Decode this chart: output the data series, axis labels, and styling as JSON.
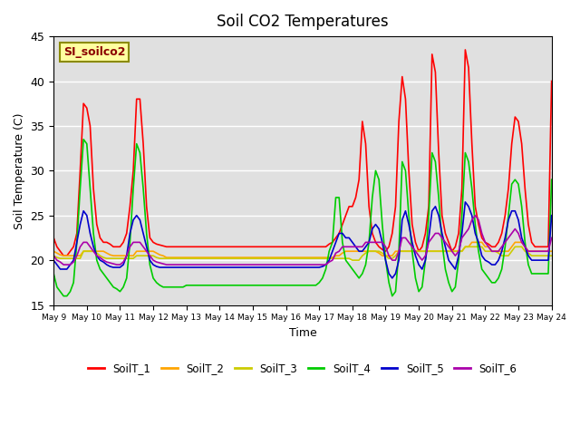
{
  "title": "Soil CO2 Temperatures",
  "xlabel": "Time",
  "ylabel": "Soil Temperature (C)",
  "ylim": [
    15,
    45
  ],
  "xlim": [
    9,
    24
  ],
  "annotation_text": "SI_soilco2",
  "annotation_color": "#8B0000",
  "annotation_bg": "#FFFFA0",
  "annotation_border": "#8B8B00",
  "bg_color": "#E0E0E0",
  "series_colors": {
    "SoilT_1": "#FF0000",
    "SoilT_2": "#FFA500",
    "SoilT_3": "#CCCC00",
    "SoilT_4": "#00CC00",
    "SoilT_5": "#0000CC",
    "SoilT_6": "#AA00AA"
  },
  "yticks": [
    15,
    20,
    25,
    30,
    35,
    40,
    45
  ],
  "xtick_positions": [
    9,
    10,
    11,
    12,
    13,
    14,
    15,
    16,
    17,
    18,
    19,
    20,
    21,
    22,
    23,
    24
  ],
  "xtick_labels": [
    "May 9",
    "May 10",
    "May 11",
    "May 12",
    "May 13",
    "May 14",
    "May 15",
    "May 16",
    "May 17",
    "May 18",
    "May 19",
    "May 20",
    "May 21",
    "May 22",
    "May 23",
    "May 24"
  ],
  "x": [
    9.0,
    9.1,
    9.2,
    9.3,
    9.4,
    9.5,
    9.6,
    9.7,
    9.8,
    9.9,
    10.0,
    10.1,
    10.2,
    10.3,
    10.4,
    10.5,
    10.6,
    10.7,
    10.8,
    10.9,
    11.0,
    11.1,
    11.2,
    11.3,
    11.4,
    11.5,
    11.6,
    11.7,
    11.8,
    11.9,
    12.0,
    12.1,
    12.2,
    12.3,
    12.4,
    12.5,
    12.6,
    12.7,
    12.8,
    12.9,
    13.0,
    13.1,
    13.2,
    13.3,
    13.4,
    13.5,
    13.6,
    13.7,
    13.8,
    13.9,
    14.0,
    14.1,
    14.2,
    14.3,
    14.4,
    14.5,
    14.6,
    14.7,
    14.8,
    14.9,
    15.0,
    15.1,
    15.2,
    15.3,
    15.4,
    15.5,
    15.6,
    15.7,
    15.8,
    15.9,
    16.0,
    16.1,
    16.2,
    16.3,
    16.4,
    16.5,
    16.6,
    16.7,
    16.8,
    16.9,
    17.0,
    17.1,
    17.2,
    17.3,
    17.4,
    17.5,
    17.6,
    17.7,
    17.8,
    17.9,
    18.0,
    18.1,
    18.2,
    18.3,
    18.4,
    18.5,
    18.6,
    18.7,
    18.8,
    18.9,
    19.0,
    19.1,
    19.2,
    19.3,
    19.4,
    19.5,
    19.6,
    19.7,
    19.8,
    19.9,
    20.0,
    20.1,
    20.2,
    20.3,
    20.4,
    20.5,
    20.6,
    20.7,
    20.8,
    20.9,
    21.0,
    21.1,
    21.2,
    21.3,
    21.4,
    21.5,
    21.6,
    21.7,
    21.8,
    21.9,
    22.0,
    22.1,
    22.2,
    22.3,
    22.4,
    22.5,
    22.6,
    22.7,
    22.8,
    22.9,
    23.0,
    23.1,
    23.2,
    23.3,
    23.4,
    23.5,
    23.6,
    23.7,
    23.8,
    23.9,
    24.0
  ],
  "SoilT_1": [
    22.5,
    21.5,
    21.0,
    20.5,
    20.5,
    21.0,
    21.5,
    23.0,
    30.0,
    37.5,
    37.0,
    35.0,
    28.0,
    24.0,
    22.5,
    22.0,
    22.0,
    21.8,
    21.5,
    21.5,
    21.5,
    22.0,
    23.0,
    26.0,
    30.0,
    38.0,
    38.0,
    33.0,
    26.0,
    22.5,
    22.0,
    21.8,
    21.7,
    21.6,
    21.5,
    21.5,
    21.5,
    21.5,
    21.5,
    21.5,
    21.5,
    21.5,
    21.5,
    21.5,
    21.5,
    21.5,
    21.5,
    21.5,
    21.5,
    21.5,
    21.5,
    21.5,
    21.5,
    21.5,
    21.5,
    21.5,
    21.5,
    21.5,
    21.5,
    21.5,
    21.5,
    21.5,
    21.5,
    21.5,
    21.5,
    21.5,
    21.5,
    21.5,
    21.5,
    21.5,
    21.5,
    21.5,
    21.5,
    21.5,
    21.5,
    21.5,
    21.5,
    21.5,
    21.5,
    21.5,
    21.5,
    21.5,
    21.5,
    21.8,
    22.0,
    22.5,
    23.0,
    24.0,
    25.0,
    26.0,
    26.0,
    27.0,
    29.0,
    35.5,
    33.0,
    26.0,
    23.0,
    22.0,
    21.5,
    21.2,
    21.0,
    21.5,
    23.0,
    26.0,
    35.5,
    40.5,
    38.0,
    30.0,
    24.0,
    22.0,
    21.0,
    21.5,
    23.0,
    26.0,
    43.0,
    41.0,
    32.0,
    25.0,
    23.0,
    22.0,
    21.0,
    21.5,
    23.0,
    28.0,
    43.5,
    41.5,
    33.0,
    26.0,
    24.0,
    22.5,
    22.0,
    21.8,
    21.5,
    21.5,
    22.0,
    23.0,
    25.0,
    28.0,
    33.0,
    36.0,
    35.5,
    33.0,
    28.0,
    24.0,
    22.0,
    21.5,
    21.5,
    21.5,
    21.5,
    21.5,
    40.0
  ],
  "SoilT_2": [
    21.0,
    20.8,
    20.6,
    20.5,
    20.5,
    20.5,
    20.5,
    20.5,
    20.5,
    21.0,
    21.0,
    21.0,
    21.0,
    21.0,
    21.0,
    21.0,
    20.8,
    20.6,
    20.5,
    20.5,
    20.5,
    20.5,
    20.5,
    20.5,
    20.5,
    21.0,
    21.0,
    21.0,
    21.0,
    21.0,
    21.0,
    20.8,
    20.6,
    20.5,
    20.3,
    20.3,
    20.3,
    20.3,
    20.3,
    20.3,
    20.3,
    20.3,
    20.3,
    20.3,
    20.3,
    20.3,
    20.3,
    20.3,
    20.3,
    20.3,
    20.3,
    20.3,
    20.3,
    20.3,
    20.3,
    20.3,
    20.3,
    20.3,
    20.3,
    20.3,
    20.3,
    20.3,
    20.3,
    20.3,
    20.3,
    20.3,
    20.3,
    20.3,
    20.3,
    20.3,
    20.3,
    20.3,
    20.3,
    20.3,
    20.3,
    20.3,
    20.3,
    20.3,
    20.3,
    20.3,
    20.3,
    20.3,
    20.3,
    20.3,
    20.3,
    20.5,
    20.5,
    20.8,
    21.0,
    21.0,
    21.0,
    21.0,
    21.0,
    21.0,
    21.0,
    21.0,
    21.0,
    21.0,
    20.8,
    20.5,
    20.5,
    20.5,
    20.5,
    21.0,
    21.0,
    21.0,
    21.0,
    21.0,
    21.0,
    21.0,
    21.0,
    21.0,
    21.0,
    21.0,
    21.0,
    21.0,
    21.0,
    21.0,
    21.0,
    21.0,
    21.0,
    21.0,
    21.0,
    21.0,
    21.5,
    21.5,
    22.0,
    22.0,
    22.0,
    22.0,
    21.5,
    21.5,
    21.0,
    21.0,
    21.0,
    21.0,
    21.0,
    21.0,
    21.5,
    22.0,
    22.0,
    22.0,
    21.5,
    21.0,
    21.0,
    21.0,
    21.0,
    21.0,
    21.0,
    21.0,
    21.0
  ],
  "SoilT_3": [
    20.5,
    20.3,
    20.2,
    20.2,
    20.2,
    20.2,
    20.2,
    20.2,
    20.2,
    21.0,
    21.0,
    21.0,
    21.0,
    20.8,
    20.5,
    20.3,
    20.2,
    20.2,
    20.2,
    20.2,
    20.2,
    20.2,
    20.2,
    20.2,
    20.2,
    20.5,
    20.5,
    20.5,
    20.5,
    20.5,
    20.5,
    20.3,
    20.2,
    20.2,
    20.2,
    20.2,
    20.2,
    20.2,
    20.2,
    20.2,
    20.2,
    20.2,
    20.2,
    20.2,
    20.2,
    20.2,
    20.2,
    20.2,
    20.2,
    20.2,
    20.2,
    20.2,
    20.2,
    20.2,
    20.2,
    20.2,
    20.2,
    20.2,
    20.2,
    20.2,
    20.2,
    20.2,
    20.2,
    20.2,
    20.2,
    20.2,
    20.2,
    20.2,
    20.2,
    20.2,
    20.2,
    20.2,
    20.2,
    20.2,
    20.2,
    20.2,
    20.2,
    20.2,
    20.2,
    20.2,
    20.2,
    20.2,
    20.2,
    20.2,
    20.2,
    20.2,
    20.2,
    20.2,
    20.2,
    20.2,
    20.0,
    20.0,
    20.0,
    20.5,
    20.8,
    21.0,
    21.0,
    21.0,
    21.0,
    20.8,
    20.5,
    20.2,
    20.2,
    20.5,
    21.0,
    21.0,
    21.0,
    21.0,
    21.0,
    21.0,
    21.0,
    21.0,
    21.0,
    21.0,
    21.0,
    21.0,
    21.0,
    21.0,
    21.0,
    21.0,
    21.0,
    21.0,
    21.0,
    21.0,
    21.5,
    21.5,
    21.5,
    21.5,
    21.5,
    21.5,
    21.0,
    21.0,
    21.0,
    21.0,
    20.8,
    20.5,
    20.5,
    20.5,
    21.0,
    21.5,
    21.5,
    21.5,
    21.0,
    20.8,
    20.5,
    20.5,
    20.5,
    20.5,
    20.5,
    20.5,
    20.5
  ],
  "SoilT_4": [
    18.5,
    17.0,
    16.5,
    16.0,
    16.0,
    16.5,
    17.5,
    22.0,
    28.0,
    33.5,
    33.0,
    28.0,
    23.0,
    20.0,
    19.0,
    18.5,
    18.0,
    17.5,
    17.0,
    16.8,
    16.5,
    17.0,
    18.0,
    22.0,
    28.0,
    33.0,
    32.0,
    28.0,
    23.0,
    19.5,
    18.0,
    17.5,
    17.2,
    17.0,
    17.0,
    17.0,
    17.0,
    17.0,
    17.0,
    17.0,
    17.2,
    17.2,
    17.2,
    17.2,
    17.2,
    17.2,
    17.2,
    17.2,
    17.2,
    17.2,
    17.2,
    17.2,
    17.2,
    17.2,
    17.2,
    17.2,
    17.2,
    17.2,
    17.2,
    17.2,
    17.2,
    17.2,
    17.2,
    17.2,
    17.2,
    17.2,
    17.2,
    17.2,
    17.2,
    17.2,
    17.2,
    17.2,
    17.2,
    17.2,
    17.2,
    17.2,
    17.2,
    17.2,
    17.2,
    17.2,
    17.5,
    18.0,
    19.0,
    21.0,
    22.0,
    27.0,
    27.0,
    22.0,
    20.0,
    19.5,
    19.0,
    18.5,
    18.0,
    18.5,
    19.5,
    22.0,
    27.0,
    30.0,
    29.0,
    24.0,
    20.0,
    17.5,
    16.0,
    16.5,
    21.0,
    31.0,
    30.0,
    25.0,
    21.0,
    18.0,
    16.5,
    17.0,
    20.0,
    25.0,
    32.0,
    31.0,
    27.0,
    22.0,
    19.0,
    17.5,
    16.5,
    17.0,
    20.0,
    25.0,
    32.0,
    31.0,
    28.0,
    24.0,
    21.0,
    19.0,
    18.5,
    18.0,
    17.5,
    17.5,
    18.0,
    19.0,
    21.5,
    25.0,
    28.5,
    29.0,
    28.5,
    26.0,
    22.0,
    19.5,
    18.5,
    18.5,
    18.5,
    18.5,
    18.5,
    18.5,
    29.0
  ],
  "SoilT_5": [
    20.0,
    19.5,
    19.0,
    19.0,
    19.0,
    19.5,
    20.0,
    22.0,
    24.0,
    25.5,
    25.0,
    23.0,
    21.5,
    20.5,
    20.0,
    19.8,
    19.5,
    19.3,
    19.2,
    19.2,
    19.2,
    19.5,
    20.5,
    23.0,
    24.5,
    25.0,
    24.5,
    23.0,
    21.5,
    20.0,
    19.5,
    19.3,
    19.2,
    19.2,
    19.2,
    19.2,
    19.2,
    19.2,
    19.2,
    19.2,
    19.2,
    19.2,
    19.2,
    19.2,
    19.2,
    19.2,
    19.2,
    19.2,
    19.2,
    19.2,
    19.2,
    19.2,
    19.2,
    19.2,
    19.2,
    19.2,
    19.2,
    19.2,
    19.2,
    19.2,
    19.2,
    19.2,
    19.2,
    19.2,
    19.2,
    19.2,
    19.2,
    19.2,
    19.2,
    19.2,
    19.2,
    19.2,
    19.2,
    19.2,
    19.2,
    19.2,
    19.2,
    19.2,
    19.2,
    19.2,
    19.2,
    19.3,
    19.5,
    20.0,
    21.0,
    22.0,
    23.0,
    23.0,
    22.5,
    22.5,
    22.0,
    21.5,
    21.0,
    21.0,
    21.5,
    22.0,
    23.5,
    24.0,
    23.5,
    22.0,
    20.0,
    18.5,
    18.0,
    18.5,
    20.0,
    24.5,
    25.5,
    24.0,
    22.0,
    20.5,
    19.5,
    19.0,
    20.0,
    22.5,
    25.5,
    26.0,
    25.0,
    23.0,
    21.5,
    20.0,
    19.5,
    19.0,
    20.5,
    23.0,
    26.5,
    26.0,
    25.0,
    23.0,
    22.0,
    20.5,
    20.0,
    19.8,
    19.5,
    19.5,
    20.0,
    21.0,
    22.5,
    24.5,
    25.5,
    25.5,
    24.5,
    22.5,
    21.5,
    20.5,
    20.0,
    20.0,
    20.0,
    20.0,
    20.0,
    20.0,
    25.0
  ],
  "SoilT_6": [
    20.5,
    20.0,
    19.8,
    19.5,
    19.5,
    19.5,
    19.8,
    20.5,
    21.5,
    22.0,
    22.0,
    21.5,
    21.0,
    20.5,
    20.3,
    20.0,
    19.8,
    19.7,
    19.6,
    19.5,
    19.5,
    19.8,
    20.5,
    21.5,
    22.0,
    22.0,
    22.0,
    21.5,
    21.0,
    20.5,
    20.0,
    19.8,
    19.7,
    19.6,
    19.5,
    19.5,
    19.5,
    19.5,
    19.5,
    19.5,
    19.5,
    19.5,
    19.5,
    19.5,
    19.5,
    19.5,
    19.5,
    19.5,
    19.5,
    19.5,
    19.5,
    19.5,
    19.5,
    19.5,
    19.5,
    19.5,
    19.5,
    19.5,
    19.5,
    19.5,
    19.5,
    19.5,
    19.5,
    19.5,
    19.5,
    19.5,
    19.5,
    19.5,
    19.5,
    19.5,
    19.5,
    19.5,
    19.5,
    19.5,
    19.5,
    19.5,
    19.5,
    19.5,
    19.5,
    19.5,
    19.5,
    19.5,
    19.5,
    19.8,
    20.0,
    20.8,
    21.0,
    21.5,
    21.5,
    21.5,
    21.5,
    21.5,
    21.5,
    21.5,
    22.0,
    22.0,
    22.0,
    22.0,
    22.0,
    22.0,
    21.5,
    20.5,
    20.0,
    20.0,
    21.0,
    22.5,
    22.5,
    22.0,
    21.5,
    21.0,
    20.5,
    20.0,
    20.5,
    22.0,
    22.5,
    23.0,
    23.0,
    22.5,
    22.0,
    21.5,
    21.0,
    20.5,
    21.0,
    22.5,
    23.0,
    23.5,
    24.5,
    25.0,
    24.5,
    23.0,
    22.0,
    21.5,
    21.0,
    21.0,
    21.0,
    21.5,
    22.0,
    22.5,
    23.0,
    23.5,
    23.0,
    22.0,
    21.5,
    21.0,
    21.0,
    21.0,
    21.0,
    21.0,
    21.0,
    21.0,
    22.5
  ]
}
